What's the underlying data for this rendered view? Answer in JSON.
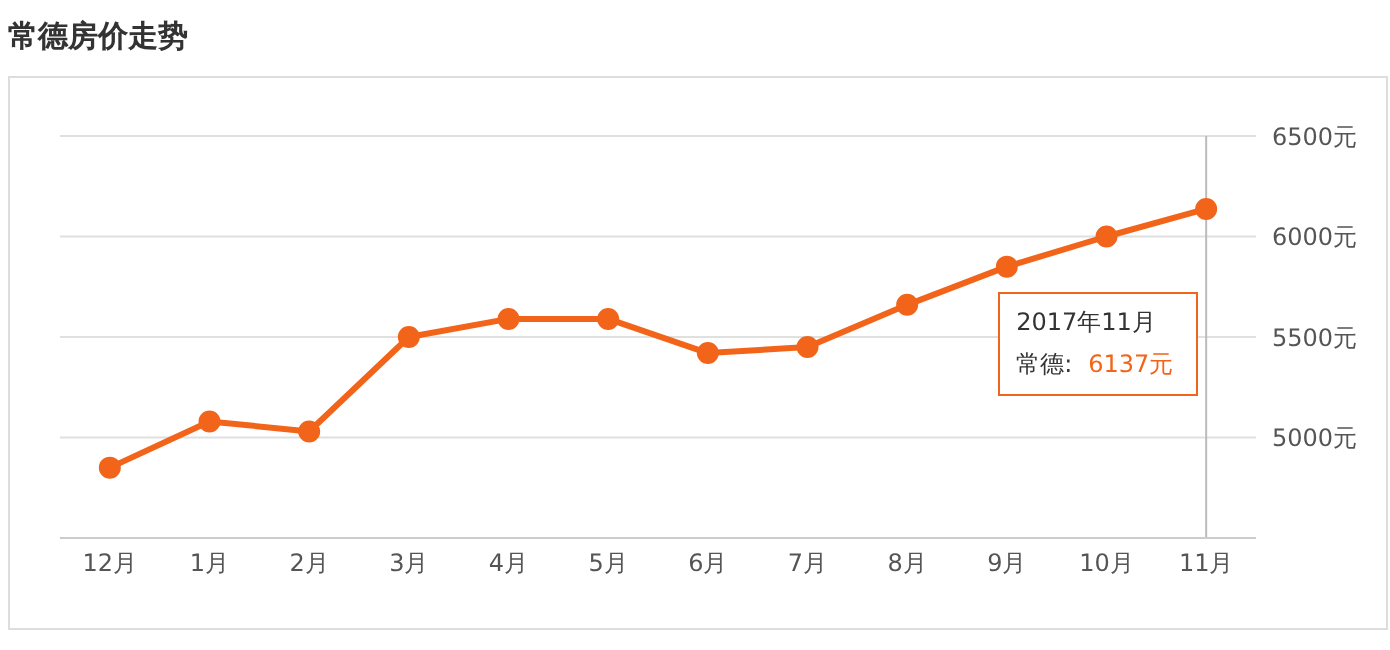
{
  "chart_data": {
    "type": "line",
    "title": "常德房价走势",
    "categories": [
      "12月",
      "1月",
      "2月",
      "3月",
      "4月",
      "5月",
      "6月",
      "7月",
      "8月",
      "9月",
      "10月",
      "11月"
    ],
    "series": [
      {
        "color": "#f26419",
        "values": [
          4850,
          5080,
          5030,
          5500,
          5590,
          5590,
          5420,
          5450,
          5660,
          5850,
          6000,
          6137
        ]
      }
    ],
    "ylim": [
      4500,
      6500
    ],
    "yticks": [
      {
        "value": 5000,
        "label": "5000元"
      },
      {
        "value": 5500,
        "label": "5500元"
      },
      {
        "value": 6000,
        "label": "6000元"
      },
      {
        "value": 6500,
        "label": "6500元"
      }
    ],
    "grid": "y",
    "legend": false,
    "marker": "circle",
    "line_style": "solid",
    "ref_lines": [
      {
        "axis": "x",
        "value": "11月",
        "color": "#bbbbbb"
      }
    ],
    "annotations": [
      "2017年11月",
      "常德:",
      "6137元"
    ]
  }
}
